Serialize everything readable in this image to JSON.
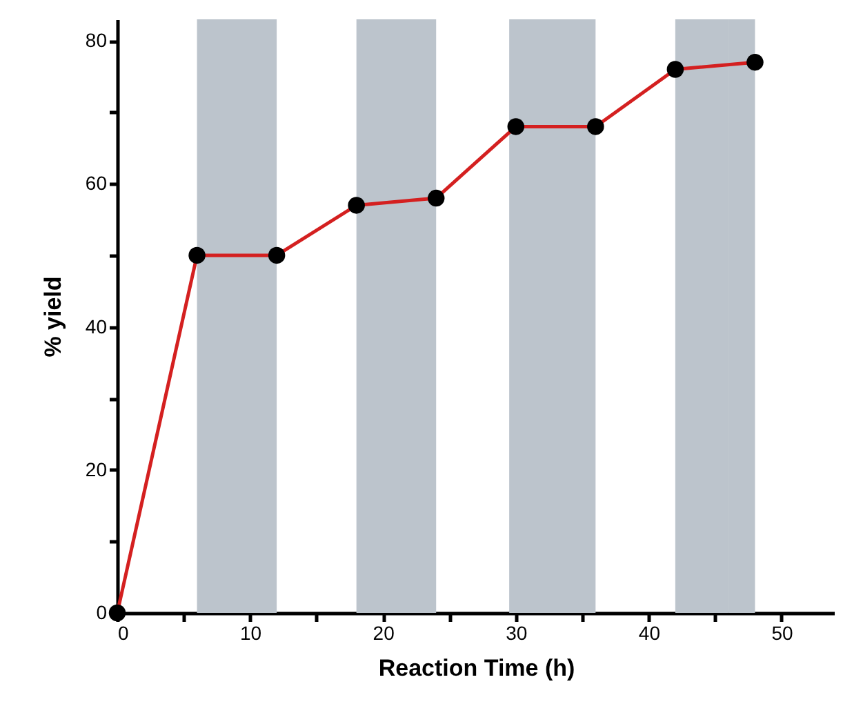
{
  "chart_data": {
    "type": "line",
    "xlabel": "Reaction Time (h)",
    "ylabel": "% yield",
    "series": [
      {
        "color": "#d42020",
        "x": [
          0,
          6,
          12,
          18,
          24,
          30,
          36,
          42,
          48
        ],
        "values": [
          0,
          50,
          50,
          57,
          58,
          68,
          68,
          76,
          77
        ]
      }
    ],
    "marker": "circle",
    "xlim": [
      0,
      54
    ],
    "xticks": [
      0,
      {
        "value": 5,
        "label": null
      },
      10,
      {
        "value": 15,
        "label": null
      },
      20,
      {
        "value": 25,
        "label": null
      },
      30,
      {
        "value": 35,
        "label": null
      },
      40,
      {
        "value": 45,
        "label": null
      },
      50
    ],
    "ylim": [
      0,
      83
    ],
    "yticks": [
      0,
      {
        "value": 10,
        "label": null
      },
      20,
      {
        "value": 30,
        "label": null
      },
      40,
      {
        "value": 50,
        "label": null
      },
      60,
      {
        "value": 70,
        "label": null
      },
      80
    ],
    "bands": [
      {
        "axis": "x",
        "from": 6,
        "to": 12,
        "color": "#bcc4cc"
      },
      {
        "axis": "x",
        "from": 18,
        "to": 24,
        "color": "#bcc4cc"
      },
      {
        "axis": "x",
        "from": 29.5,
        "to": 36,
        "color": "#bcc4cc"
      },
      {
        "axis": "x",
        "from": 42,
        "to": 46,
        "color": "#bcc4cc"
      },
      {
        "axis": "x",
        "from": 46,
        "to": 48,
        "color": "#bcc4cc"
      }
    ],
    "grid": false
  }
}
